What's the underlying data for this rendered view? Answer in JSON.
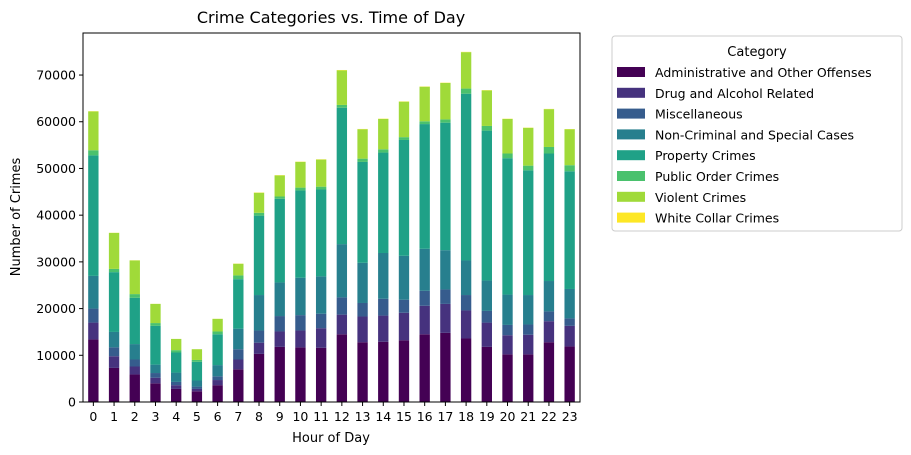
{
  "chart_data": {
    "type": "bar",
    "stacked": true,
    "title": "Crime Categories vs. Time of Day",
    "xlabel": "Hour of Day",
    "ylabel": "Number of Crimes",
    "ylim": [
      0,
      79000
    ],
    "yticks": [
      0,
      10000,
      20000,
      30000,
      40000,
      50000,
      60000,
      70000
    ],
    "categories": [
      "0",
      "1",
      "2",
      "3",
      "4",
      "5",
      "6",
      "7",
      "8",
      "9",
      "10",
      "11",
      "12",
      "13",
      "14",
      "15",
      "16",
      "17",
      "18",
      "19",
      "20",
      "21",
      "22",
      "23"
    ],
    "legend": {
      "title": "Category",
      "placement": "outside right"
    },
    "series": [
      {
        "name": "Administrative and Other Offenses",
        "color": "#440154",
        "values": [
          13400,
          7300,
          5900,
          4000,
          2800,
          2300,
          3600,
          7000,
          10300,
          11800,
          11700,
          11600,
          14500,
          12800,
          12900,
          13200,
          14500,
          14800,
          13600,
          11800,
          10200,
          10200,
          12800,
          11900
        ]
      },
      {
        "name": "Drug and Alcohol Related",
        "color": "#46327e",
        "values": [
          3600,
          2500,
          1700,
          1200,
          800,
          500,
          1100,
          2100,
          2400,
          3300,
          3600,
          4200,
          4200,
          5500,
          5600,
          5900,
          6100,
          6200,
          6000,
          5200,
          4100,
          4200,
          4500,
          4400
        ]
      },
      {
        "name": "Miscellaneous",
        "color": "#365c8d",
        "values": [
          3000,
          1900,
          1500,
          1000,
          700,
          500,
          800,
          2200,
          2600,
          3300,
          3300,
          3100,
          3700,
          2900,
          3600,
          2800,
          3200,
          3100,
          3300,
          2500,
          2200,
          2200,
          2100,
          1600
        ]
      },
      {
        "name": "Non-Criminal and Special Cases",
        "color": "#277f8e",
        "values": [
          7000,
          3300,
          3300,
          1800,
          2000,
          1300,
          2400,
          4400,
          7600,
          7200,
          8000,
          8000,
          11400,
          8600,
          9800,
          9400,
          9000,
          8400,
          7400,
          6500,
          6500,
          6300,
          6500,
          6300
        ]
      },
      {
        "name": "Property Crimes",
        "color": "#1fa187",
        "values": [
          25800,
          12800,
          9900,
          8300,
          4300,
          4000,
          6600,
          10600,
          17000,
          17900,
          18700,
          18600,
          29200,
          21600,
          21500,
          24800,
          26700,
          27300,
          35700,
          32100,
          29200,
          26700,
          27300,
          25200
        ]
      },
      {
        "name": "Public Order Crimes",
        "color": "#4ac16d",
        "values": [
          1100,
          700,
          800,
          600,
          500,
          400,
          600,
          800,
          600,
          500,
          600,
          600,
          600,
          700,
          700,
          600,
          600,
          700,
          1100,
          1000,
          1000,
          1000,
          1400,
          1300
        ]
      },
      {
        "name": "Violent Crimes",
        "color": "#a0da39",
        "values": [
          8300,
          7700,
          7200,
          4100,
          2400,
          2300,
          2700,
          2500,
          4300,
          4500,
          5500,
          5800,
          7400,
          6300,
          6500,
          7600,
          7400,
          7800,
          7800,
          7600,
          7400,
          8100,
          8100,
          7700
        ]
      },
      {
        "name": "White Collar Crimes",
        "color": "#fde725",
        "values": [
          50,
          30,
          30,
          20,
          10,
          10,
          20,
          40,
          60,
          60,
          60,
          60,
          80,
          60,
          60,
          60,
          60,
          60,
          60,
          60,
          50,
          50,
          50,
          50
        ]
      }
    ]
  }
}
